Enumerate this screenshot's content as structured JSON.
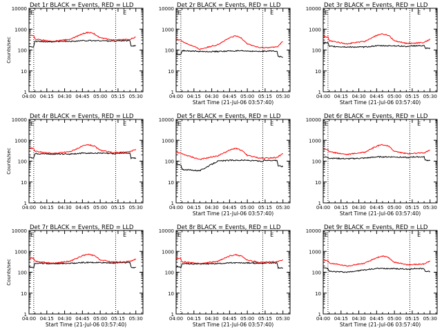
{
  "figure": {
    "line_colors": {
      "events": "#000000",
      "lld": "#ff0000",
      "axes": "#000000",
      "background": "#ffffff"
    }
  },
  "chart_data": [
    {
      "type": "line",
      "panel": "Det 1r",
      "title": "Det 1r BLACK = Events, RED = LLD",
      "xlabel": "",
      "ylabel": "Counts/sec",
      "yscale": "log",
      "ylim": [
        1,
        10000
      ],
      "xticks": [
        "04:00",
        "04:15",
        "04:30",
        "04:45",
        "05:00",
        "05:15",
        "05:30"
      ],
      "yticks": [
        "1",
        "10",
        "100",
        "1000",
        "10000"
      ],
      "markers": [
        {
          "text": "E",
          "x_min": 0
        },
        {
          "text": "E",
          "x_min": 78
        }
      ],
      "dotted_lines_x_min": [
        4,
        73
      ],
      "series": [
        {
          "color": "#000000",
          "x_min": [
            0,
            4,
            5,
            20,
            35,
            45,
            50,
            60,
            70,
            73,
            74,
            85,
            86,
            90
          ],
          "values": [
            150,
            145,
            260,
            250,
            260,
            280,
            280,
            280,
            270,
            265,
            280,
            280,
            160,
            160
          ]
        },
        {
          "color": "#ff0000",
          "x_min": [
            0,
            4,
            5,
            20,
            35,
            45,
            50,
            55,
            60,
            70,
            73,
            74,
            85,
            90
          ],
          "values": [
            500,
            470,
            330,
            260,
            330,
            600,
            700,
            600,
            380,
            300,
            300,
            300,
            330,
            420
          ]
        }
      ]
    },
    {
      "type": "line",
      "panel": "Det 2r",
      "title": "Det 2r BLACK = Events, RED = LLD",
      "xlabel": "Start Time (21-Jul-06 03:57:40)",
      "ylabel": "",
      "yscale": "log",
      "ylim": [
        1,
        10000
      ],
      "xticks": [
        "04:00",
        "04:15",
        "04:30",
        "04:45",
        "05:00",
        "05:15",
        "05:30"
      ],
      "yticks": [
        "1",
        "10",
        "100",
        "1000",
        "10000"
      ],
      "markers": [
        {
          "text": "E",
          "x_min": 0
        },
        {
          "text": "E",
          "x_min": 78
        }
      ],
      "dotted_lines_x_min": [
        4,
        73
      ],
      "series": [
        {
          "color": "#000000",
          "x_min": [
            0,
            4,
            5,
            20,
            35,
            45,
            50,
            60,
            70,
            73,
            74,
            85,
            86,
            90
          ],
          "values": [
            65,
            60,
            95,
            85,
            85,
            90,
            90,
            90,
            85,
            85,
            90,
            90,
            50,
            45
          ]
        },
        {
          "color": "#ff0000",
          "x_min": [
            0,
            4,
            5,
            20,
            35,
            45,
            50,
            55,
            60,
            70,
            73,
            74,
            85,
            90
          ],
          "values": [
            330,
            300,
            260,
            110,
            180,
            380,
            480,
            380,
            200,
            130,
            130,
            130,
            140,
            260
          ]
        }
      ]
    },
    {
      "type": "line",
      "panel": "Det 3r",
      "title": "Det 3r BLACK = Events, RED = LLD",
      "xlabel": "Start Time (21-Jul-06 03:57:40)",
      "ylabel": "",
      "yscale": "log",
      "ylim": [
        1,
        10000
      ],
      "xticks": [
        "04:00",
        "04:15",
        "04:30",
        "04:45",
        "05:00",
        "05:15",
        "05:30"
      ],
      "yticks": [
        "1",
        "10",
        "100",
        "1000",
        "10000"
      ],
      "markers": [
        {
          "text": "E",
          "x_min": 0
        },
        {
          "text": "E",
          "x_min": 78
        }
      ],
      "dotted_lines_x_min": [
        4,
        73
      ],
      "series": [
        {
          "color": "#000000",
          "x_min": [
            0,
            4,
            5,
            20,
            35,
            45,
            50,
            60,
            70,
            73,
            74,
            85,
            86,
            90
          ],
          "values": [
            230,
            220,
            150,
            140,
            140,
            160,
            160,
            160,
            150,
            145,
            160,
            160,
            120,
            120
          ]
        },
        {
          "color": "#ff0000",
          "x_min": [
            0,
            4,
            5,
            20,
            35,
            45,
            50,
            55,
            60,
            70,
            73,
            74,
            85,
            90
          ],
          "values": [
            440,
            420,
            280,
            200,
            260,
            500,
            600,
            500,
            280,
            210,
            210,
            210,
            230,
            330
          ]
        }
      ]
    },
    {
      "type": "line",
      "panel": "Det 4r",
      "title": "Det 4r BLACK = Events, RED = LLD",
      "xlabel": "",
      "ylabel": "Counts/sec",
      "yscale": "log",
      "ylim": [
        1,
        10000
      ],
      "xticks": [
        "04:00",
        "04:15",
        "04:30",
        "04:45",
        "05:00",
        "05:15",
        "05:30"
      ],
      "yticks": [
        "1",
        "10",
        "100",
        "1000",
        "10000"
      ],
      "markers": [
        {
          "text": "E",
          "x_min": 0
        },
        {
          "text": "E",
          "x_min": 78
        }
      ],
      "dotted_lines_x_min": [
        4,
        73
      ],
      "series": [
        {
          "color": "#000000",
          "x_min": [
            0,
            4,
            5,
            20,
            35,
            45,
            50,
            60,
            70,
            73,
            74,
            85,
            86,
            90
          ],
          "values": [
            150,
            145,
            230,
            220,
            220,
            240,
            240,
            240,
            230,
            225,
            240,
            240,
            140,
            140
          ]
        },
        {
          "color": "#ff0000",
          "x_min": [
            0,
            4,
            5,
            20,
            35,
            45,
            50,
            55,
            60,
            70,
            73,
            74,
            85,
            90
          ],
          "values": [
            430,
            400,
            300,
            230,
            290,
            520,
            620,
            520,
            330,
            260,
            260,
            260,
            280,
            370
          ]
        }
      ]
    },
    {
      "type": "line",
      "panel": "Det 5r",
      "title": "Det 5r BLACK = Events, RED = LLD",
      "xlabel": "Start Time (21-Jul-06 03:57:40)",
      "ylabel": "",
      "yscale": "log",
      "ylim": [
        1,
        10000
      ],
      "xticks": [
        "04:00",
        "04:15",
        "04:30",
        "04:45",
        "05:00",
        "05:15",
        "05:30"
      ],
      "yticks": [
        "1",
        "10",
        "100",
        "1000",
        "10000"
      ],
      "markers": [
        {
          "text": "E",
          "x_min": 0
        },
        {
          "text": "E",
          "x_min": 78
        }
      ],
      "dotted_lines_x_min": [
        4,
        73
      ],
      "series": [
        {
          "color": "#000000",
          "x_min": [
            0,
            4,
            5,
            20,
            35,
            45,
            50,
            60,
            70,
            73,
            74,
            85,
            86,
            90
          ],
          "values": [
            70,
            65,
            40,
            35,
            100,
            110,
            110,
            110,
            100,
            95,
            110,
            110,
            60,
            55
          ]
        },
        {
          "color": "#ff0000",
          "x_min": [
            0,
            4,
            5,
            20,
            35,
            45,
            50,
            55,
            60,
            70,
            73,
            74,
            85,
            90
          ],
          "values": [
            260,
            240,
            220,
            120,
            180,
            330,
            420,
            330,
            190,
            140,
            140,
            140,
            150,
            230
          ]
        }
      ]
    },
    {
      "type": "line",
      "panel": "Det 6r",
      "title": "Det 6r BLACK = Events, RED = LLD",
      "xlabel": "Start Time (21-Jul-06 03:57:40)",
      "ylabel": "",
      "yscale": "log",
      "ylim": [
        1,
        10000
      ],
      "xticks": [
        "04:00",
        "04:15",
        "04:30",
        "04:45",
        "05:00",
        "05:15",
        "05:30"
      ],
      "yticks": [
        "1",
        "10",
        "100",
        "1000",
        "10000"
      ],
      "markers": [
        {
          "text": "E",
          "x_min": 0
        },
        {
          "text": "E",
          "x_min": 78
        }
      ],
      "dotted_lines_x_min": [
        4,
        73
      ],
      "series": [
        {
          "color": "#000000",
          "x_min": [
            0,
            4,
            5,
            20,
            35,
            45,
            50,
            60,
            70,
            73,
            74,
            85,
            86,
            90
          ],
          "values": [
            160,
            150,
            140,
            130,
            140,
            160,
            160,
            160,
            150,
            145,
            160,
            160,
            110,
            110
          ]
        },
        {
          "color": "#ff0000",
          "x_min": [
            0,
            4,
            5,
            20,
            35,
            45,
            50,
            55,
            60,
            70,
            73,
            74,
            85,
            90
          ],
          "values": [
            380,
            360,
            280,
            210,
            270,
            520,
            620,
            520,
            300,
            230,
            230,
            230,
            250,
            340
          ]
        }
      ]
    },
    {
      "type": "line",
      "panel": "Det 7r",
      "title": "Det 7r BLACK = Events, RED = LLD",
      "xlabel": "Start Time (21-Jul-06 03:57:40)",
      "ylabel": "Counts/sec",
      "yscale": "log",
      "ylim": [
        1,
        10000
      ],
      "xticks": [
        "04:00",
        "04:15",
        "04:30",
        "04:45",
        "05:00",
        "05:15",
        "05:30"
      ],
      "yticks": [
        "1",
        "10",
        "100",
        "1000",
        "10000"
      ],
      "markers": [
        {
          "text": "E",
          "x_min": 0
        },
        {
          "text": "E",
          "x_min": 78
        }
      ],
      "dotted_lines_x_min": [
        4,
        73
      ],
      "series": [
        {
          "color": "#000000",
          "x_min": [
            0,
            4,
            5,
            20,
            35,
            45,
            50,
            60,
            70,
            73,
            74,
            85,
            86,
            90
          ],
          "values": [
            180,
            170,
            270,
            260,
            270,
            290,
            290,
            290,
            280,
            275,
            290,
            290,
            170,
            170
          ]
        },
        {
          "color": "#ff0000",
          "x_min": [
            0,
            4,
            5,
            20,
            35,
            45,
            50,
            55,
            60,
            70,
            73,
            74,
            85,
            90
          ],
          "values": [
            480,
            460,
            330,
            270,
            340,
            620,
            720,
            620,
            390,
            310,
            310,
            310,
            330,
            420
          ]
        }
      ]
    },
    {
      "type": "line",
      "panel": "Det 8r",
      "title": "Det 8r BLACK = Events, RED = LLD",
      "xlabel": "Start Time (21-Jul-06 03:57:40)",
      "ylabel": "",
      "yscale": "log",
      "ylim": [
        1,
        10000
      ],
      "xticks": [
        "04:00",
        "04:15",
        "04:30",
        "04:45",
        "05:00",
        "05:15",
        "05:30"
      ],
      "yticks": [
        "1",
        "10",
        "100",
        "1000",
        "10000"
      ],
      "markers": [
        {
          "text": "E",
          "x_min": 0
        },
        {
          "text": "E",
          "x_min": 78
        }
      ],
      "dotted_lines_x_min": [
        4,
        73
      ],
      "series": [
        {
          "color": "#000000",
          "x_min": [
            0,
            4,
            5,
            20,
            35,
            45,
            50,
            60,
            70,
            73,
            74,
            85,
            86,
            90
          ],
          "values": [
            180,
            170,
            260,
            250,
            260,
            280,
            280,
            280,
            270,
            265,
            280,
            280,
            160,
            160
          ]
        },
        {
          "color": "#ff0000",
          "x_min": [
            0,
            4,
            5,
            20,
            35,
            45,
            50,
            55,
            60,
            70,
            73,
            74,
            85,
            90
          ],
          "values": [
            470,
            450,
            320,
            260,
            330,
            600,
            700,
            600,
            380,
            300,
            300,
            300,
            320,
            400
          ]
        }
      ]
    },
    {
      "type": "line",
      "panel": "Det 9r",
      "title": "Det 9r BLACK = Events, RED = LLD",
      "xlabel": "Start Time (21-Jul-06 03:57:40)",
      "ylabel": "",
      "yscale": "log",
      "ylim": [
        1,
        10000
      ],
      "xticks": [
        "04:00",
        "04:15",
        "04:30",
        "04:45",
        "05:00",
        "05:15",
        "05:30"
      ],
      "yticks": [
        "1",
        "10",
        "100",
        "1000",
        "10000"
      ],
      "markers": [
        {
          "text": "E",
          "x_min": 0
        },
        {
          "text": "E",
          "x_min": 78
        }
      ],
      "dotted_lines_x_min": [
        4,
        73
      ],
      "series": [
        {
          "color": "#000000",
          "x_min": [
            0,
            4,
            5,
            20,
            35,
            45,
            50,
            60,
            70,
            73,
            74,
            85,
            86,
            90
          ],
          "values": [
            160,
            150,
            110,
            100,
            130,
            150,
            150,
            150,
            140,
            135,
            150,
            150,
            110,
            110
          ]
        },
        {
          "color": "#ff0000",
          "x_min": [
            0,
            4,
            5,
            20,
            35,
            45,
            50,
            55,
            60,
            70,
            73,
            74,
            85,
            90
          ],
          "values": [
            380,
            360,
            280,
            200,
            270,
            500,
            600,
            500,
            300,
            230,
            230,
            230,
            250,
            360
          ]
        }
      ]
    }
  ]
}
